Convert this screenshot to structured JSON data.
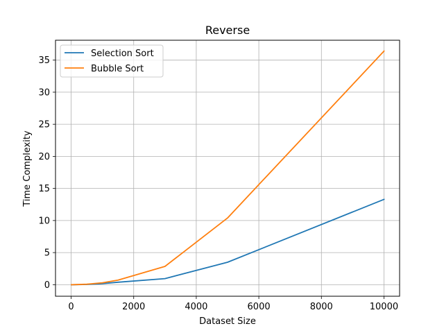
{
  "chart_data": {
    "type": "line",
    "title": "Reverse",
    "xlabel": "Dataset Size",
    "ylabel": "Time Complexity",
    "xlim": [
      -500,
      10500
    ],
    "ylim": [
      -1.8,
      38.1
    ],
    "xticks": [
      0,
      2000,
      4000,
      6000,
      8000,
      10000
    ],
    "xtick_labels": [
      "0",
      "2000",
      "4000",
      "6000",
      "8000",
      "10000"
    ],
    "yticks": [
      0,
      5,
      10,
      15,
      20,
      25,
      30,
      35
    ],
    "ytick_labels": [
      "0",
      "5",
      "10",
      "15",
      "20",
      "25",
      "30",
      "35"
    ],
    "grid": true,
    "legend_position": "upper-left",
    "x": [
      10,
      500,
      1000,
      1500,
      3000,
      5000,
      10000
    ],
    "series": [
      {
        "name": "Selection Sort",
        "color": "#1f77b4",
        "values": [
          0.0,
          0.04,
          0.17,
          0.38,
          0.95,
          3.5,
          13.3
        ]
      },
      {
        "name": "Bubble Sort",
        "color": "#ff7f0e",
        "values": [
          0.0,
          0.07,
          0.3,
          0.72,
          2.85,
          10.4,
          36.4
        ]
      }
    ]
  }
}
